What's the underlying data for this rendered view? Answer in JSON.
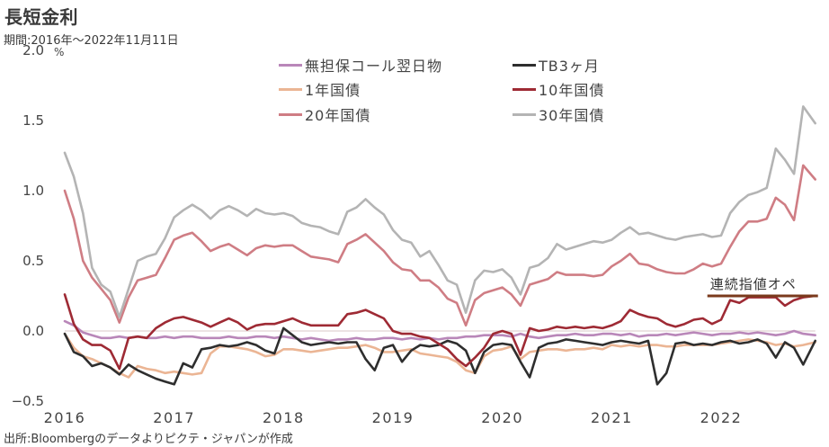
{
  "title": "長短金利",
  "subtitle": "期間:2016年～2022年11月11日",
  "unit": "%",
  "source": "出所:Bloombergのデータよりピクテ・ジャパンが作成",
  "chart_data": {
    "type": "line",
    "title": "長短金利",
    "subtitle": "期間:2016年～2022年11月11日",
    "xlabel": "",
    "ylabel": "%",
    "ylim": [
      -0.5,
      2.0
    ],
    "yticks": [
      2.0,
      1.5,
      1.0,
      0.5,
      0.0,
      -0.5
    ],
    "ytick_labels": [
      "2.0",
      "1.5",
      "1.0",
      "0.5",
      "0.0",
      "−0.5"
    ],
    "negative_tick_color": "#c0392b",
    "xticks": [
      "2016",
      "2017",
      "2018",
      "2019",
      "2020",
      "2021",
      "2022"
    ],
    "grid": false,
    "zero_line": true,
    "zero_line_color": "#e6dada",
    "legend": "top-center",
    "x": [
      "2016-01",
      "2016-02",
      "2016-03",
      "2016-04",
      "2016-05",
      "2016-06",
      "2016-07",
      "2016-08",
      "2016-09",
      "2016-10",
      "2016-11",
      "2016-12",
      "2017-01",
      "2017-02",
      "2017-03",
      "2017-04",
      "2017-05",
      "2017-06",
      "2017-07",
      "2017-08",
      "2017-09",
      "2017-10",
      "2017-11",
      "2017-12",
      "2018-01",
      "2018-02",
      "2018-03",
      "2018-04",
      "2018-05",
      "2018-06",
      "2018-07",
      "2018-08",
      "2018-09",
      "2018-10",
      "2018-11",
      "2018-12",
      "2019-01",
      "2019-02",
      "2019-03",
      "2019-04",
      "2019-05",
      "2019-06",
      "2019-07",
      "2019-08",
      "2019-09",
      "2019-10",
      "2019-11",
      "2019-12",
      "2020-01",
      "2020-02",
      "2020-03",
      "2020-04",
      "2020-05",
      "2020-06",
      "2020-07",
      "2020-08",
      "2020-09",
      "2020-10",
      "2020-11",
      "2020-12",
      "2021-01",
      "2021-02",
      "2021-03",
      "2021-04",
      "2021-05",
      "2021-06",
      "2021-07",
      "2021-08",
      "2021-09",
      "2021-10",
      "2021-11",
      "2021-12",
      "2022-01",
      "2022-02",
      "2022-03",
      "2022-04",
      "2022-05",
      "2022-06",
      "2022-07",
      "2022-08",
      "2022-09",
      "2022-10",
      "2022-11-11"
    ],
    "series": [
      {
        "name": "無担保コール翌日物",
        "color": "#b987b9",
        "values": [
          0.07,
          0.04,
          -0.01,
          -0.03,
          -0.05,
          -0.05,
          -0.04,
          -0.05,
          -0.04,
          -0.05,
          -0.05,
          -0.04,
          -0.05,
          -0.04,
          -0.04,
          -0.05,
          -0.05,
          -0.05,
          -0.04,
          -0.05,
          -0.05,
          -0.04,
          -0.04,
          -0.05,
          -0.04,
          -0.05,
          -0.06,
          -0.05,
          -0.06,
          -0.07,
          -0.06,
          -0.06,
          -0.05,
          -0.06,
          -0.06,
          -0.05,
          -0.05,
          -0.06,
          -0.05,
          -0.06,
          -0.05,
          -0.06,
          -0.05,
          -0.05,
          -0.04,
          -0.04,
          -0.03,
          -0.03,
          -0.03,
          -0.04,
          -0.02,
          -0.04,
          -0.05,
          -0.04,
          -0.03,
          -0.03,
          -0.02,
          -0.03,
          -0.03,
          -0.02,
          -0.02,
          -0.03,
          -0.02,
          -0.04,
          -0.03,
          -0.03,
          -0.02,
          -0.03,
          -0.02,
          -0.01,
          -0.02,
          -0.03,
          -0.02,
          -0.02,
          -0.01,
          -0.02,
          -0.01,
          -0.02,
          -0.03,
          -0.02,
          0.0,
          -0.02,
          -0.03
        ]
      },
      {
        "name": "TB3ヶ月",
        "color": "#2e2e2e",
        "values": [
          -0.02,
          -0.15,
          -0.18,
          -0.25,
          -0.23,
          -0.26,
          -0.31,
          -0.24,
          -0.28,
          -0.31,
          -0.34,
          -0.36,
          -0.38,
          -0.23,
          -0.26,
          -0.13,
          -0.12,
          -0.1,
          -0.11,
          -0.1,
          -0.08,
          -0.1,
          -0.14,
          -0.16,
          0.02,
          -0.03,
          -0.08,
          -0.1,
          -0.09,
          -0.08,
          -0.09,
          -0.08,
          -0.08,
          -0.2,
          -0.28,
          -0.12,
          -0.1,
          -0.22,
          -0.14,
          -0.1,
          -0.11,
          -0.1,
          -0.07,
          -0.09,
          -0.14,
          -0.3,
          -0.15,
          -0.1,
          -0.09,
          -0.1,
          -0.22,
          -0.33,
          -0.12,
          -0.09,
          -0.08,
          -0.06,
          -0.07,
          -0.08,
          -0.09,
          -0.1,
          -0.08,
          -0.07,
          -0.08,
          -0.09,
          -0.07,
          -0.38,
          -0.3,
          -0.09,
          -0.08,
          -0.1,
          -0.09,
          -0.1,
          -0.08,
          -0.07,
          -0.09,
          -0.08,
          -0.06,
          -0.09,
          -0.19,
          -0.08,
          -0.12,
          -0.24,
          -0.07
        ]
      },
      {
        "name": "1年国債",
        "color": "#ebb594",
        "values": [
          -0.02,
          -0.12,
          -0.18,
          -0.2,
          -0.23,
          -0.26,
          -0.3,
          -0.33,
          -0.25,
          -0.27,
          -0.28,
          -0.3,
          -0.29,
          -0.3,
          -0.31,
          -0.3,
          -0.16,
          -0.11,
          -0.11,
          -0.12,
          -0.13,
          -0.15,
          -0.18,
          -0.17,
          -0.13,
          -0.13,
          -0.14,
          -0.15,
          -0.14,
          -0.13,
          -0.12,
          -0.12,
          -0.11,
          -0.1,
          -0.12,
          -0.15,
          -0.15,
          -0.14,
          -0.13,
          -0.16,
          -0.17,
          -0.18,
          -0.19,
          -0.22,
          -0.28,
          -0.3,
          -0.18,
          -0.14,
          -0.13,
          -0.11,
          -0.2,
          -0.15,
          -0.14,
          -0.13,
          -0.13,
          -0.14,
          -0.13,
          -0.13,
          -0.12,
          -0.13,
          -0.1,
          -0.11,
          -0.1,
          -0.11,
          -0.1,
          -0.1,
          -0.11,
          -0.11,
          -0.1,
          -0.1,
          -0.1,
          -0.1,
          -0.09,
          -0.08,
          -0.07,
          -0.06,
          -0.07,
          -0.08,
          -0.1,
          -0.09,
          -0.11,
          -0.1,
          -0.08
        ]
      },
      {
        "name": "10年国債",
        "color": "#9e2a34",
        "values": [
          0.26,
          0.05,
          -0.06,
          -0.1,
          -0.1,
          -0.14,
          -0.27,
          -0.05,
          -0.04,
          -0.05,
          0.02,
          0.06,
          0.09,
          0.1,
          0.08,
          0.06,
          0.03,
          0.06,
          0.09,
          0.06,
          0.01,
          0.04,
          0.05,
          0.05,
          0.07,
          0.09,
          0.06,
          0.04,
          0.04,
          0.04,
          0.04,
          0.12,
          0.13,
          0.15,
          0.12,
          0.09,
          0.0,
          -0.02,
          -0.02,
          -0.04,
          -0.05,
          -0.09,
          -0.13,
          -0.2,
          -0.25,
          -0.19,
          -0.12,
          -0.02,
          0.0,
          -0.02,
          -0.17,
          0.02,
          0.0,
          0.01,
          0.03,
          0.02,
          0.03,
          0.02,
          0.03,
          0.02,
          0.04,
          0.07,
          0.15,
          0.12,
          0.1,
          0.09,
          0.05,
          0.03,
          0.05,
          0.08,
          0.09,
          0.05,
          0.08,
          0.22,
          0.2,
          0.24,
          0.24,
          0.24,
          0.24,
          0.18,
          0.22,
          0.24,
          0.25
        ]
      },
      {
        "name": "20年国債",
        "color": "#cf7d84",
        "values": [
          1.0,
          0.8,
          0.5,
          0.38,
          0.3,
          0.22,
          0.06,
          0.24,
          0.36,
          0.38,
          0.4,
          0.52,
          0.65,
          0.68,
          0.7,
          0.64,
          0.57,
          0.6,
          0.62,
          0.58,
          0.54,
          0.59,
          0.61,
          0.6,
          0.61,
          0.61,
          0.57,
          0.53,
          0.52,
          0.51,
          0.49,
          0.62,
          0.65,
          0.69,
          0.63,
          0.57,
          0.49,
          0.44,
          0.43,
          0.36,
          0.36,
          0.31,
          0.23,
          0.2,
          0.04,
          0.22,
          0.27,
          0.29,
          0.31,
          0.26,
          0.18,
          0.33,
          0.35,
          0.37,
          0.42,
          0.4,
          0.4,
          0.4,
          0.39,
          0.4,
          0.46,
          0.5,
          0.55,
          0.48,
          0.47,
          0.44,
          0.42,
          0.41,
          0.41,
          0.44,
          0.48,
          0.46,
          0.48,
          0.6,
          0.71,
          0.78,
          0.78,
          0.8,
          0.95,
          0.9,
          0.79,
          1.18,
          1.08
        ]
      },
      {
        "name": "30年国債",
        "color": "#b4b4b4",
        "values": [
          1.27,
          1.1,
          0.84,
          0.45,
          0.33,
          0.28,
          0.1,
          0.3,
          0.5,
          0.53,
          0.55,
          0.66,
          0.81,
          0.86,
          0.9,
          0.86,
          0.8,
          0.86,
          0.89,
          0.86,
          0.82,
          0.87,
          0.84,
          0.83,
          0.84,
          0.82,
          0.77,
          0.75,
          0.74,
          0.71,
          0.69,
          0.85,
          0.88,
          0.94,
          0.88,
          0.83,
          0.72,
          0.65,
          0.63,
          0.53,
          0.57,
          0.47,
          0.36,
          0.33,
          0.13,
          0.36,
          0.43,
          0.42,
          0.44,
          0.38,
          0.26,
          0.45,
          0.47,
          0.52,
          0.62,
          0.58,
          0.6,
          0.62,
          0.64,
          0.63,
          0.65,
          0.7,
          0.74,
          0.69,
          0.7,
          0.68,
          0.66,
          0.65,
          0.67,
          0.68,
          0.69,
          0.67,
          0.68,
          0.84,
          0.92,
          0.97,
          0.99,
          1.02,
          1.3,
          1.22,
          1.12,
          1.6,
          1.48
        ]
      }
    ],
    "annotations": [
      {
        "text": "連続指値オペ",
        "value": 0.25,
        "x_from": "2021-11",
        "x_to": "2022-11-11",
        "color": "#7a3a1c"
      }
    ]
  }
}
